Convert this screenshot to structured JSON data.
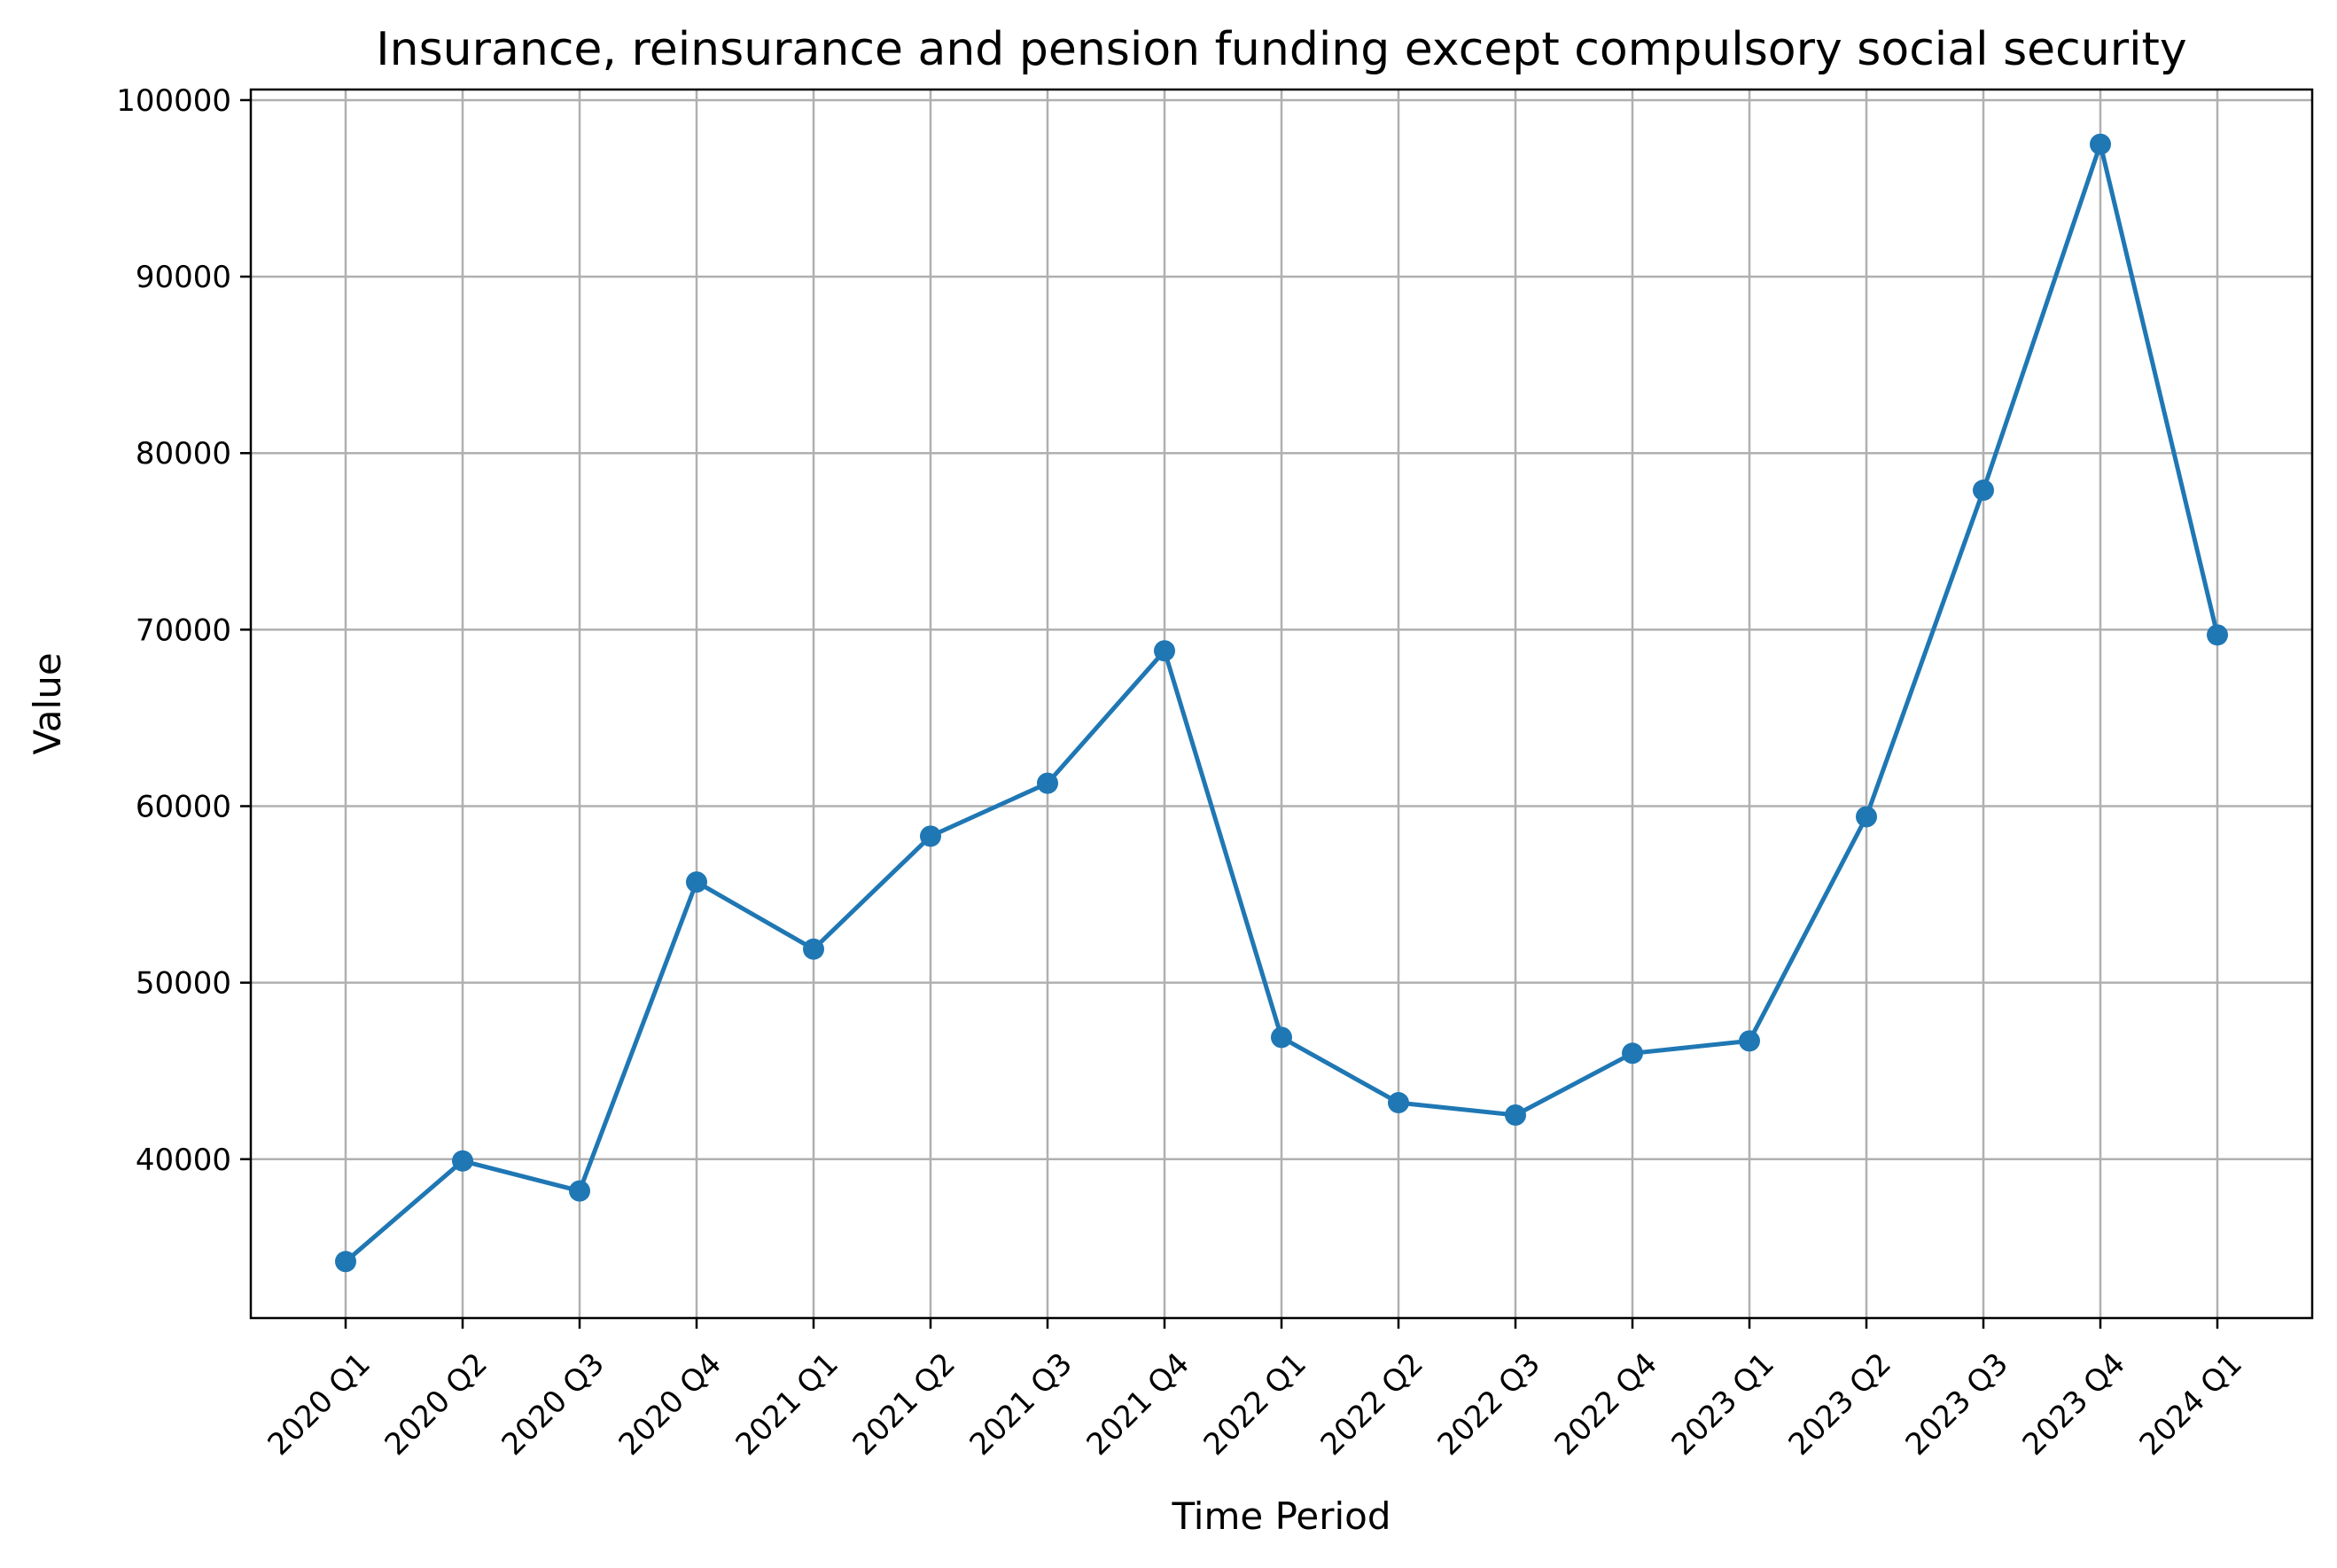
{
  "chart_data": {
    "type": "line",
    "title": "Insurance, reinsurance and pension funding except compulsory social security",
    "xlabel": "Time Period",
    "ylabel": "Value",
    "categories": [
      "2020 Q1",
      "2020 Q2",
      "2020 Q3",
      "2020 Q4",
      "2021 Q1",
      "2021 Q2",
      "2021 Q3",
      "2021 Q4",
      "2022 Q1",
      "2022 Q2",
      "2022 Q3",
      "2022 Q4",
      "2023 Q1",
      "2023 Q2",
      "2023 Q3",
      "2023 Q4",
      "2024 Q1"
    ],
    "series": [
      {
        "values": [
          34200,
          39900,
          38200,
          55700,
          51900,
          58300,
          61300,
          68800,
          46900,
          43200,
          42500,
          46000,
          46700,
          59400,
          77900,
          97500,
          69700
        ],
        "color": "#1f77b4"
      }
    ],
    "yticks": [
      40000,
      50000,
      60000,
      70000,
      80000,
      90000,
      100000
    ],
    "ylim": [
      31000,
      100600
    ],
    "grid": true,
    "legend": "none"
  }
}
